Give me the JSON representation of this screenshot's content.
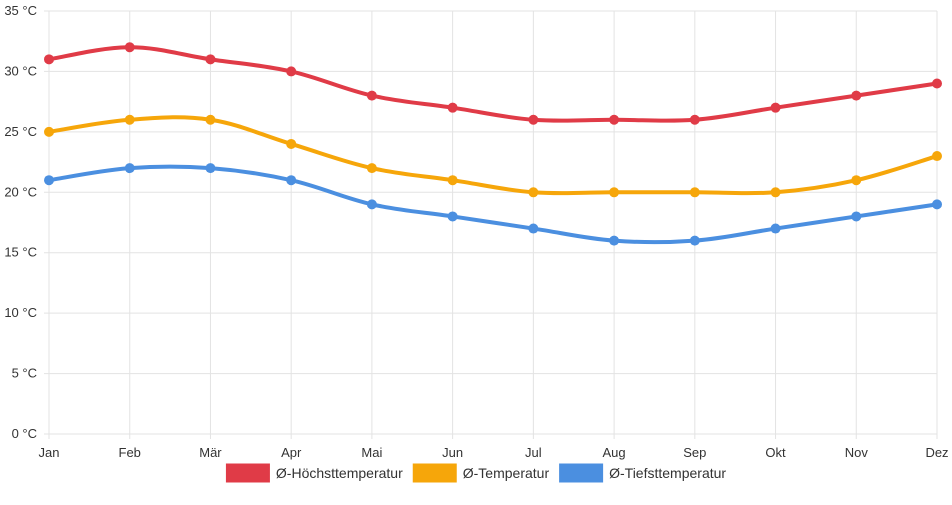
{
  "chart_data": {
    "type": "line",
    "categories": [
      "Jan",
      "Feb",
      "Mär",
      "Apr",
      "Mai",
      "Jun",
      "Jul",
      "Aug",
      "Sep",
      "Okt",
      "Nov",
      "Dez"
    ],
    "ylim": [
      0,
      35
    ],
    "yticks": [
      0,
      5,
      10,
      15,
      20,
      25,
      30,
      35
    ],
    "y_unit": " °C",
    "grid": true,
    "legend_position": "bottom",
    "series": [
      {
        "name": "Ø-Höchsttemperatur",
        "color": "#e03b47",
        "values": [
          31,
          32,
          31,
          30,
          28,
          27,
          26,
          26,
          26,
          27,
          28,
          29
        ]
      },
      {
        "name": "Ø-Temperatur",
        "color": "#f6a60a",
        "values": [
          25,
          26,
          26,
          24,
          22,
          21,
          20,
          20,
          20,
          20,
          21,
          23
        ]
      },
      {
        "name": "Ø-Tiefsttemperatur",
        "color": "#4b8fe0",
        "values": [
          21,
          22,
          22,
          21,
          19,
          18,
          17,
          16,
          16,
          17,
          18,
          19
        ]
      }
    ]
  }
}
